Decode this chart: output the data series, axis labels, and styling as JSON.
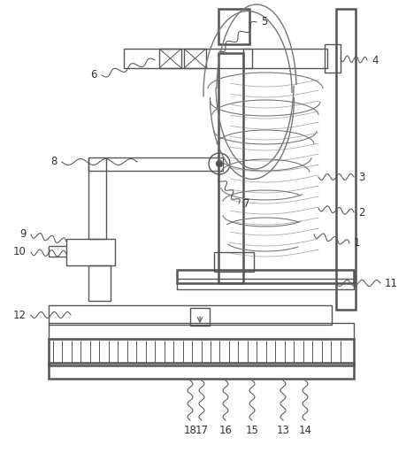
{
  "bg_color": "#ffffff",
  "line_color": "#555555",
  "lw": 1.0,
  "lw_thick": 1.8,
  "lw_thin": 0.7,
  "label_fontsize": 8.5,
  "label_color": "#333333"
}
